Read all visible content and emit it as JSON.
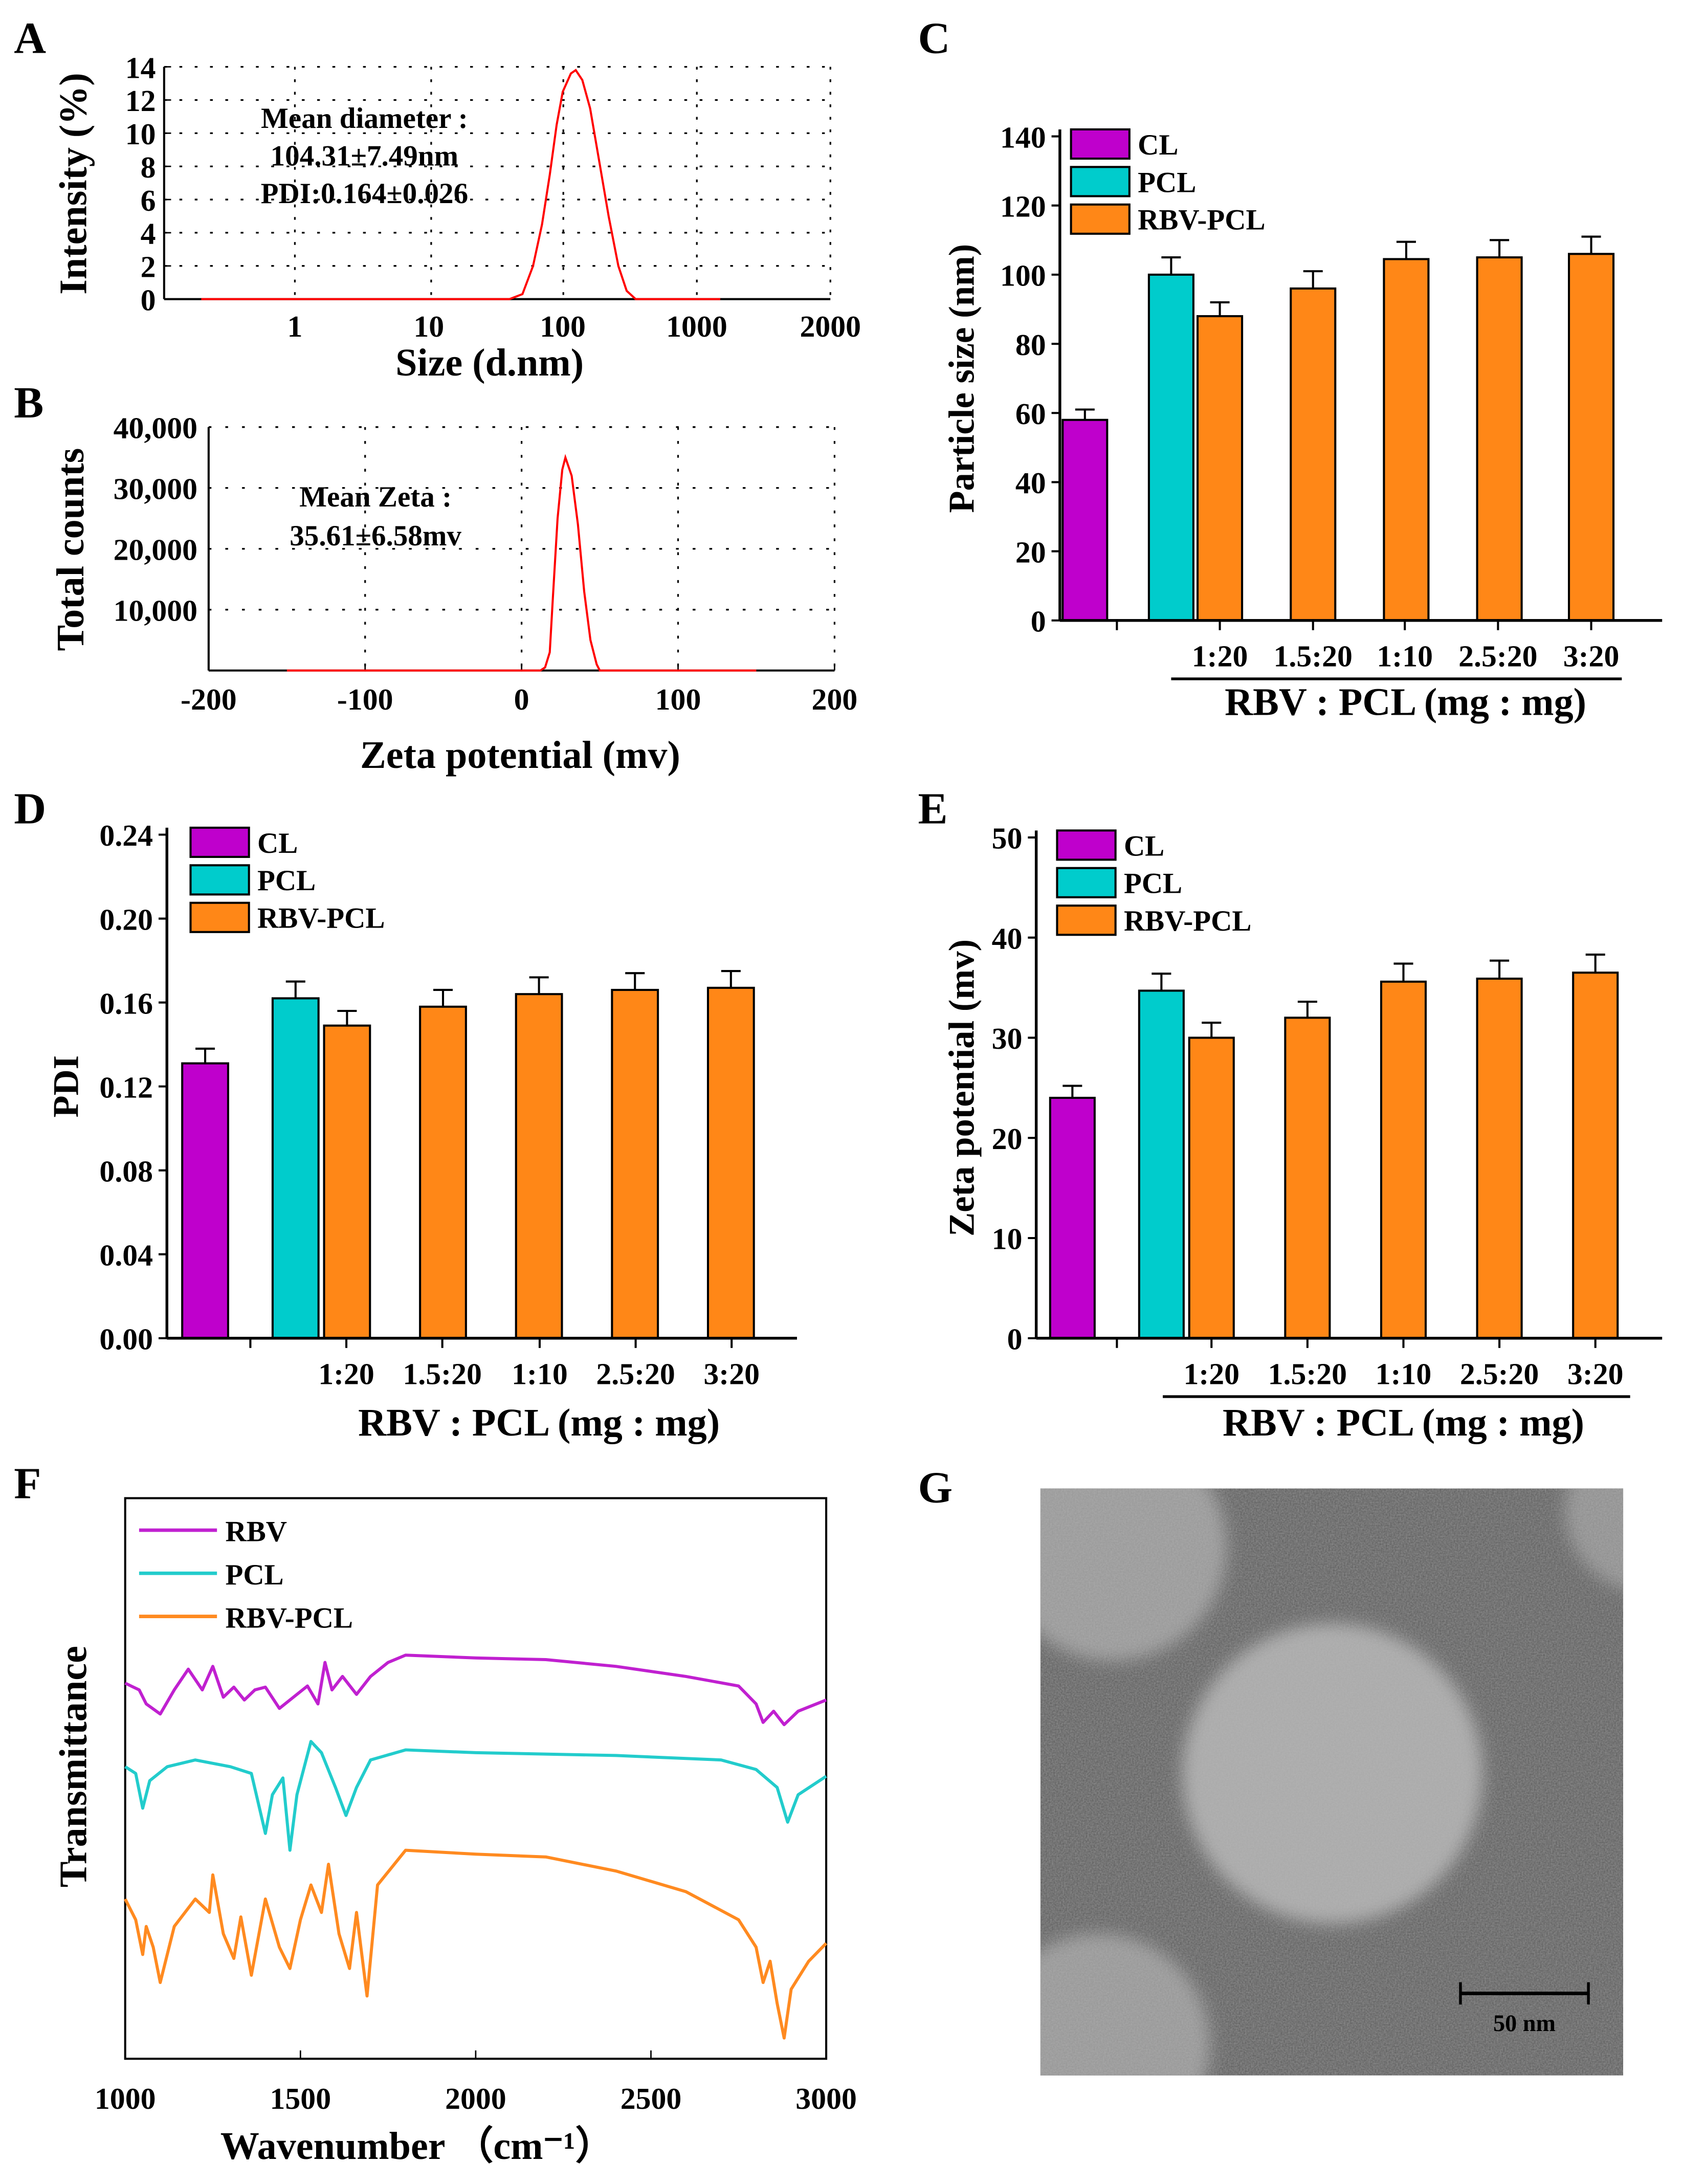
{
  "panels": {
    "A": "A",
    "B": "B",
    "C": "C",
    "D": "D",
    "E": "E",
    "F": "F",
    "G": "G"
  },
  "colors": {
    "CL": "#bf00cc",
    "PCL": "#00cccc",
    "RBV-PCL": "#ff8717",
    "curve": "#ff0000",
    "RBV_line": "#c020d0",
    "PCL_line": "#22cccc",
    "RBVPCL_line": "#ff8a20"
  },
  "chart_data": [
    {
      "id": "A",
      "type": "line",
      "xscale": "log",
      "xlabel": "Size (d.nm)",
      "ylabel": "Intensity (%)",
      "ylim": [
        0,
        14
      ],
      "yticks": [
        "0",
        "2",
        "4",
        "6",
        "8",
        "10",
        "12",
        "14"
      ],
      "xticks": [
        "1",
        "10",
        "100",
        "1000",
        "2000"
      ],
      "grid": "dotted",
      "annotations": [
        "Mean diameter :",
        "104.31±7.49nm",
        "PDI:0.164±0.026"
      ],
      "points": [
        [
          0.2,
          0
        ],
        [
          40,
          0
        ],
        [
          50,
          0.3
        ],
        [
          60,
          2
        ],
        [
          70,
          4.5
        ],
        [
          80,
          7.5
        ],
        [
          90,
          10.5
        ],
        [
          100,
          12.5
        ],
        [
          115,
          13.6
        ],
        [
          125,
          13.8
        ],
        [
          140,
          13.2
        ],
        [
          160,
          11.5
        ],
        [
          190,
          8
        ],
        [
          220,
          5
        ],
        [
          260,
          2
        ],
        [
          300,
          0.5
        ],
        [
          350,
          0
        ],
        [
          1500,
          0
        ]
      ]
    },
    {
      "id": "B",
      "type": "line",
      "xlabel": "Zeta potential  (mv)",
      "ylabel": "Total counts",
      "xlim": [
        -200,
        200
      ],
      "ylim": [
        0,
        40000
      ],
      "yticks": [
        "10,000",
        "20,000",
        "30,000",
        "40,000"
      ],
      "xticks": [
        "-200",
        "-100",
        "0",
        "100",
        "200"
      ],
      "grid": "dotted",
      "annotations": [
        "Mean Zeta :",
        "35.61±6.58mv"
      ],
      "points": [
        [
          -150,
          0
        ],
        [
          12,
          0
        ],
        [
          15,
          500
        ],
        [
          18,
          3000
        ],
        [
          20,
          12000
        ],
        [
          23,
          25000
        ],
        [
          26,
          33000
        ],
        [
          28,
          35000
        ],
        [
          32,
          32000
        ],
        [
          36,
          24000
        ],
        [
          40,
          13000
        ],
        [
          44,
          5000
        ],
        [
          48,
          1000
        ],
        [
          50,
          0
        ],
        [
          150,
          0
        ]
      ]
    },
    {
      "id": "C",
      "type": "bar",
      "ylabel": "Particle size (nm)",
      "xlabel": "RBV : PCL (mg : mg)",
      "ylim": [
        0,
        140
      ],
      "yticks": [
        "0",
        "20",
        "40",
        "60",
        "80",
        "100",
        "120",
        "140"
      ],
      "legend": [
        "CL",
        "PCL",
        "RBV-PCL"
      ],
      "categories": [
        "1:20",
        "1.5:20",
        "1:10",
        "2.5:20",
        "3:20"
      ],
      "bars": [
        {
          "group": "CL",
          "value": 58,
          "err": 3
        },
        {
          "group": "PCL",
          "value": 100,
          "err": 5
        },
        {
          "group": "RBV-PCL",
          "value": 88,
          "err": 4
        },
        {
          "group": "RBV-PCL",
          "value": 96,
          "err": 5
        },
        {
          "group": "RBV-PCL",
          "value": 104.5,
          "err": 5
        },
        {
          "group": "RBV-PCL",
          "value": 105,
          "err": 5
        },
        {
          "group": "RBV-PCL",
          "value": 106,
          "err": 5
        }
      ]
    },
    {
      "id": "D",
      "type": "bar",
      "ylabel": "PDI",
      "xlabel": "RBV : PCL (mg : mg)",
      "ylim": [
        0,
        0.24
      ],
      "yticks": [
        "0.00",
        "0.04",
        "0.08",
        "0.12",
        "0.16",
        "0.20",
        "0.24"
      ],
      "legend": [
        "CL",
        "PCL",
        "RBV-PCL"
      ],
      "categories": [
        "1:20",
        "1.5:20",
        "1:10",
        "2.5:20",
        "3:20"
      ],
      "bars": [
        {
          "group": "CL",
          "value": 0.131,
          "err": 0.007
        },
        {
          "group": "PCL",
          "value": 0.162,
          "err": 0.008
        },
        {
          "group": "RBV-PCL",
          "value": 0.149,
          "err": 0.007
        },
        {
          "group": "RBV-PCL",
          "value": 0.158,
          "err": 0.008
        },
        {
          "group": "RBV-PCL",
          "value": 0.164,
          "err": 0.008
        },
        {
          "group": "RBV-PCL",
          "value": 0.166,
          "err": 0.008
        },
        {
          "group": "RBV-PCL",
          "value": 0.167,
          "err": 0.008
        }
      ]
    },
    {
      "id": "E",
      "type": "bar",
      "ylabel": "Zeta potential (mv)",
      "xlabel": "RBV : PCL (mg : mg)",
      "ylim": [
        0,
        50
      ],
      "yticks": [
        "0",
        "10",
        "20",
        "30",
        "40",
        "50"
      ],
      "legend": [
        "CL",
        "PCL",
        "RBV-PCL"
      ],
      "categories": [
        "1:20",
        "1.5:20",
        "1:10",
        "2.5:20",
        "3:20"
      ],
      "bars": [
        {
          "group": "CL",
          "value": 24,
          "err": 1.2
        },
        {
          "group": "PCL",
          "value": 34.7,
          "err": 1.7
        },
        {
          "group": "RBV-PCL",
          "value": 30,
          "err": 1.5
        },
        {
          "group": "RBV-PCL",
          "value": 32,
          "err": 1.6
        },
        {
          "group": "RBV-PCL",
          "value": 35.6,
          "err": 1.8
        },
        {
          "group": "RBV-PCL",
          "value": 35.9,
          "err": 1.8
        },
        {
          "group": "RBV-PCL",
          "value": 36.5,
          "err": 1.8
        }
      ]
    },
    {
      "id": "F",
      "type": "line",
      "xlabel": "Wavenumber  （cm⁻¹）",
      "ylabel": "Transmittance",
      "xlim": [
        1000,
        3000
      ],
      "ylim": [
        0,
        100
      ],
      "xticks": [
        "1000",
        "1500",
        "2000",
        "2500",
        "3000"
      ],
      "series": [
        {
          "name": "RBV",
          "points": [
            [
              1000,
              67
            ],
            [
              1040,
              65.8
            ],
            [
              1060,
              63.3
            ],
            [
              1100,
              61.5
            ],
            [
              1140,
              65.8
            ],
            [
              1180,
              69.5
            ],
            [
              1220,
              65.8
            ],
            [
              1250,
              70
            ],
            [
              1280,
              64.5
            ],
            [
              1310,
              66.3
            ],
            [
              1340,
              64
            ],
            [
              1370,
              65.8
            ],
            [
              1400,
              66.3
            ],
            [
              1440,
              62.5
            ],
            [
              1480,
              64.5
            ],
            [
              1520,
              66.5
            ],
            [
              1550,
              63.3
            ],
            [
              1570,
              70.7
            ],
            [
              1590,
              65.8
            ],
            [
              1620,
              68.2
            ],
            [
              1660,
              65
            ],
            [
              1700,
              68.2
            ],
            [
              1750,
              70.7
            ],
            [
              1800,
              72
            ],
            [
              2000,
              71.5
            ],
            [
              2200,
              71.2
            ],
            [
              2400,
              70
            ],
            [
              2600,
              68.2
            ],
            [
              2750,
              66.5
            ],
            [
              2800,
              63.3
            ],
            [
              2820,
              60
            ],
            [
              2850,
              62
            ],
            [
              2880,
              59.6
            ],
            [
              2920,
              62
            ],
            [
              3000,
              64
            ]
          ]
        },
        {
          "name": "PCL",
          "points": [
            [
              1000,
              52.1
            ],
            [
              1030,
              50.9
            ],
            [
              1050,
              44.7
            ],
            [
              1070,
              49.6
            ],
            [
              1120,
              52.1
            ],
            [
              1200,
              53.3
            ],
            [
              1300,
              52.1
            ],
            [
              1360,
              50.9
            ],
            [
              1400,
              40.2
            ],
            [
              1420,
              47.1
            ],
            [
              1450,
              50.1
            ],
            [
              1470,
              37.2
            ],
            [
              1490,
              47.1
            ],
            [
              1530,
              56.6
            ],
            [
              1560,
              54.6
            ],
            [
              1600,
              48.4
            ],
            [
              1630,
              43.4
            ],
            [
              1660,
              48.4
            ],
            [
              1700,
              53.3
            ],
            [
              1800,
              55.1
            ],
            [
              2000,
              54.6
            ],
            [
              2400,
              54.1
            ],
            [
              2700,
              53.3
            ],
            [
              2800,
              51.6
            ],
            [
              2860,
              48.4
            ],
            [
              2890,
              42.2
            ],
            [
              2920,
              47.1
            ],
            [
              3000,
              50.4
            ]
          ]
        },
        {
          "name": "RBV-PCL",
          "points": [
            [
              1000,
              28.5
            ],
            [
              1030,
              24.8
            ],
            [
              1050,
              18.6
            ],
            [
              1060,
              23.6
            ],
            [
              1080,
              19.9
            ],
            [
              1100,
              13.6
            ],
            [
              1140,
              23.6
            ],
            [
              1200,
              28.5
            ],
            [
              1240,
              26.1
            ],
            [
              1250,
              32.8
            ],
            [
              1280,
              22.3
            ],
            [
              1310,
              17.9
            ],
            [
              1330,
              25.3
            ],
            [
              1360,
              14.9
            ],
            [
              1400,
              28.5
            ],
            [
              1440,
              19.9
            ],
            [
              1470,
              16.1
            ],
            [
              1500,
              24.8
            ],
            [
              1530,
              31
            ],
            [
              1560,
              26.1
            ],
            [
              1580,
              34.7
            ],
            [
              1610,
              22.3
            ],
            [
              1640,
              16.1
            ],
            [
              1660,
              26.1
            ],
            [
              1690,
              11.2
            ],
            [
              1720,
              31
            ],
            [
              1800,
              37.2
            ],
            [
              2000,
              36.5
            ],
            [
              2200,
              36
            ],
            [
              2400,
              33.5
            ],
            [
              2600,
              29.8
            ],
            [
              2750,
              24.8
            ],
            [
              2800,
              19.9
            ],
            [
              2820,
              13.6
            ],
            [
              2840,
              17.4
            ],
            [
              2860,
              9.9
            ],
            [
              2880,
              3.7
            ],
            [
              2900,
              12.4
            ],
            [
              2950,
              17.4
            ],
            [
              3000,
              20.6
            ]
          ]
        }
      ]
    }
  ],
  "tem": {
    "scale_bar": "50 nm"
  }
}
